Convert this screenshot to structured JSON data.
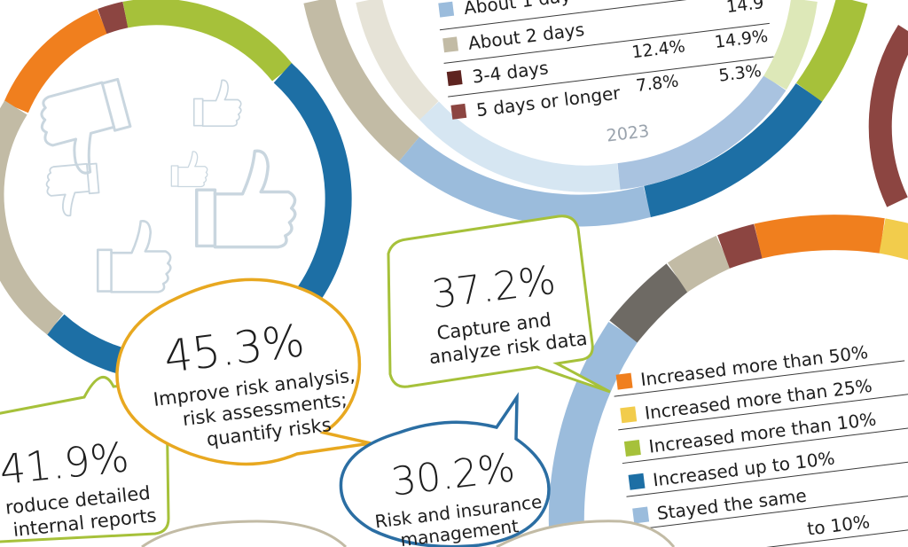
{
  "infographic": {
    "top_donut": {
      "year_label": "2023",
      "legend": [
        {
          "label": "About 1 day",
          "values": [
            "",
            ""
          ],
          "color": "#9bbcdc"
        },
        {
          "label": "About 2 days",
          "values": [
            "",
            "14.9"
          ],
          "color": "#c2bba5"
        },
        {
          "label": "3-4 days",
          "values": [
            "12.4%",
            "14.9%"
          ],
          "color": "#5e2420"
        },
        {
          "label": "5 days or longer",
          "values": [
            "7.8%",
            "5.3%"
          ],
          "color": "#8c4541"
        }
      ]
    },
    "callouts": [
      {
        "value": "45.3%",
        "text": [
          "Improve risk analysis,",
          "risk assessments;",
          "quantify risks"
        ],
        "color": "#e8a820"
      },
      {
        "value": "37.2%",
        "text": [
          "Capture and",
          "analyze risk data"
        ],
        "color": "#a6c13a"
      },
      {
        "value": "30.2%",
        "text": [
          "Risk and insurance",
          "management"
        ],
        "color": "#2b6ea3"
      },
      {
        "value": "41.9%",
        "text": [
          "roduce detailed",
          "internal reports"
        ],
        "color": "#a6c13a"
      }
    ],
    "bottom_legend": [
      {
        "label": "Increased more than 50%",
        "color": "#f07f1e"
      },
      {
        "label": "Increased more than 25%",
        "color": "#f2cc4c"
      },
      {
        "label": "Increased more than 10%",
        "color": "#a6c13a"
      },
      {
        "label": "Increased up to 10%",
        "color": "#1d6fa5"
      },
      {
        "label": "Stayed the same",
        "color": "#9bbcdc"
      },
      {
        "label": "to 10%",
        "color": "#6e6a64"
      }
    ],
    "icons": [
      "thumbs-up-icon",
      "thumbs-down-icon"
    ],
    "colors": {
      "orange": "#f07f1e",
      "maroon": "#8c4541",
      "green": "#a6c13a",
      "blue": "#1d6fa5",
      "lightblue": "#9bbcdc",
      "tan": "#c2bba5"
    }
  }
}
